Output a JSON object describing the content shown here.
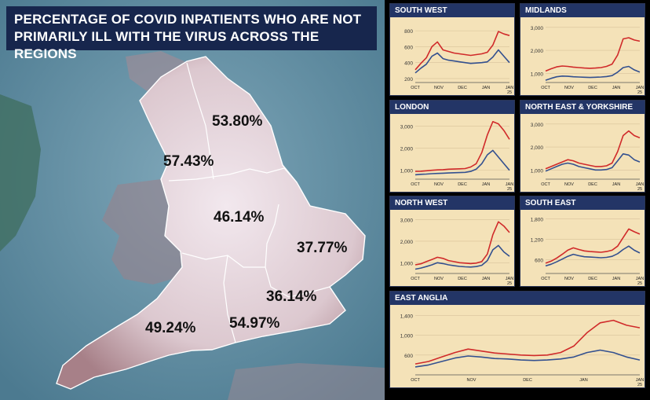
{
  "title": "PERCENTAGE OF COVID INPATIENTS WHO ARE NOT PRIMARILY ILL WITH THE VIRUS ACROSS THE REGIONS",
  "map_percentages": {
    "north_east_yorkshire": "53.80%",
    "north_west": "57.43%",
    "midlands": "46.14%",
    "east_anglia": "37.77%",
    "london": "36.14%",
    "south_east": "54.97%",
    "south_west": "49.24%"
  },
  "colors": {
    "total_line": "#d02a2a",
    "other_line": "#33508f",
    "panel_bg": "#f4e2b8",
    "header_bg": "#233566",
    "title_bg": "#17264d"
  },
  "chart_data": [
    {
      "type": "line",
      "title": "SOUTH WEST",
      "x_ticks": [
        "OCT",
        "NOV",
        "DEC",
        "JAN",
        "JAN 25"
      ],
      "y_ticks": [
        200,
        400,
        600,
        800
      ],
      "ylim": [
        150,
        900
      ],
      "series": [
        {
          "values": [
            310,
            390,
            460,
            600,
            660,
            560,
            540,
            520,
            510,
            500,
            490,
            500,
            510,
            530,
            620,
            790,
            760,
            740
          ]
        },
        {
          "values": [
            270,
            330,
            380,
            480,
            520,
            450,
            430,
            420,
            410,
            400,
            390,
            395,
            400,
            410,
            470,
            560,
            480,
            400
          ]
        }
      ]
    },
    {
      "type": "line",
      "title": "MIDLANDS",
      "x_ticks": [
        "OCT",
        "NOV",
        "DEC",
        "JAN",
        "JAN 25"
      ],
      "y_ticks": [
        1000,
        2000,
        3000
      ],
      "ylim": [
        600,
        3200
      ],
      "series": [
        {
          "values": [
            1100,
            1200,
            1280,
            1320,
            1300,
            1270,
            1250,
            1230,
            1220,
            1230,
            1250,
            1300,
            1400,
            1800,
            2500,
            2550,
            2450,
            2400
          ]
        },
        {
          "values": [
            700,
            780,
            850,
            880,
            870,
            850,
            840,
            830,
            820,
            830,
            840,
            860,
            900,
            1050,
            1250,
            1300,
            1150,
            1050
          ]
        }
      ]
    },
    {
      "type": "line",
      "title": "LONDON",
      "x_ticks": [
        "OCT",
        "NOV",
        "DEC",
        "JAN",
        "JAN 25"
      ],
      "y_ticks": [
        1000,
        2000,
        3000
      ],
      "ylim": [
        600,
        3300
      ],
      "series": [
        {
          "values": [
            950,
            960,
            980,
            1000,
            1020,
            1030,
            1050,
            1060,
            1070,
            1080,
            1150,
            1300,
            1800,
            2600,
            3200,
            3100,
            2800,
            2400
          ]
        },
        {
          "values": [
            800,
            820,
            830,
            850,
            860,
            870,
            880,
            890,
            900,
            910,
            950,
            1050,
            1300,
            1700,
            1900,
            1600,
            1300,
            1000
          ]
        }
      ]
    },
    {
      "type": "line",
      "title": "NORTH EAST & YORKSHIRE",
      "x_ticks": [
        "OCT",
        "NOV",
        "DEC",
        "JAN",
        "JAN 25"
      ],
      "y_ticks": [
        1000,
        2000,
        3000
      ],
      "ylim": [
        600,
        3200
      ],
      "series": [
        {
          "values": [
            1050,
            1150,
            1250,
            1350,
            1450,
            1400,
            1300,
            1250,
            1200,
            1150,
            1150,
            1180,
            1300,
            1800,
            2500,
            2700,
            2500,
            2400
          ]
        },
        {
          "values": [
            950,
            1050,
            1150,
            1250,
            1300,
            1250,
            1150,
            1100,
            1050,
            1000,
            1000,
            1020,
            1100,
            1400,
            1700,
            1650,
            1450,
            1350
          ]
        }
      ]
    },
    {
      "type": "line",
      "title": "NORTH WEST",
      "x_ticks": [
        "OCT",
        "NOV",
        "DEC",
        "JAN",
        "JAN 25"
      ],
      "y_ticks": [
        1000,
        2000,
        3000
      ],
      "ylim": [
        500,
        3200
      ],
      "series": [
        {
          "values": [
            900,
            950,
            1050,
            1150,
            1250,
            1200,
            1100,
            1050,
            1000,
            980,
            960,
            980,
            1050,
            1400,
            2300,
            2900,
            2700,
            2400
          ]
        },
        {
          "values": [
            700,
            750,
            820,
            900,
            1000,
            960,
            900,
            860,
            830,
            810,
            800,
            820,
            880,
            1100,
            1600,
            1800,
            1500,
            1300
          ]
        }
      ]
    },
    {
      "type": "line",
      "title": "SOUTH EAST",
      "x_ticks": [
        "OCT",
        "NOV",
        "DEC",
        "JAN",
        "JAN 25"
      ],
      "y_ticks": [
        600,
        1200,
        1800
      ],
      "ylim": [
        200,
        1900
      ],
      "series": [
        {
          "values": [
            500,
            560,
            650,
            760,
            880,
            950,
            900,
            860,
            840,
            830,
            820,
            840,
            880,
            1000,
            1250,
            1500,
            1420,
            1350
          ]
        },
        {
          "values": [
            420,
            470,
            540,
            620,
            700,
            760,
            720,
            690,
            680,
            670,
            660,
            670,
            700,
            780,
            900,
            1000,
            880,
            800
          ]
        }
      ]
    },
    {
      "type": "line",
      "title": "EAST ANGLIA",
      "x_ticks": [
        "OCT",
        "NOV",
        "DEC",
        "JAN",
        "JAN 25"
      ],
      "y_ticks": [
        600,
        1000,
        1400
      ],
      "ylim": [
        200,
        1500
      ],
      "series": [
        {
          "values": [
            420,
            470,
            560,
            650,
            720,
            680,
            640,
            620,
            600,
            590,
            600,
            650,
            780,
            1050,
            1250,
            1300,
            1200,
            1150
          ]
        },
        {
          "values": [
            360,
            400,
            470,
            540,
            580,
            560,
            530,
            520,
            500,
            490,
            500,
            520,
            560,
            650,
            700,
            650,
            560,
            500
          ]
        }
      ]
    }
  ]
}
